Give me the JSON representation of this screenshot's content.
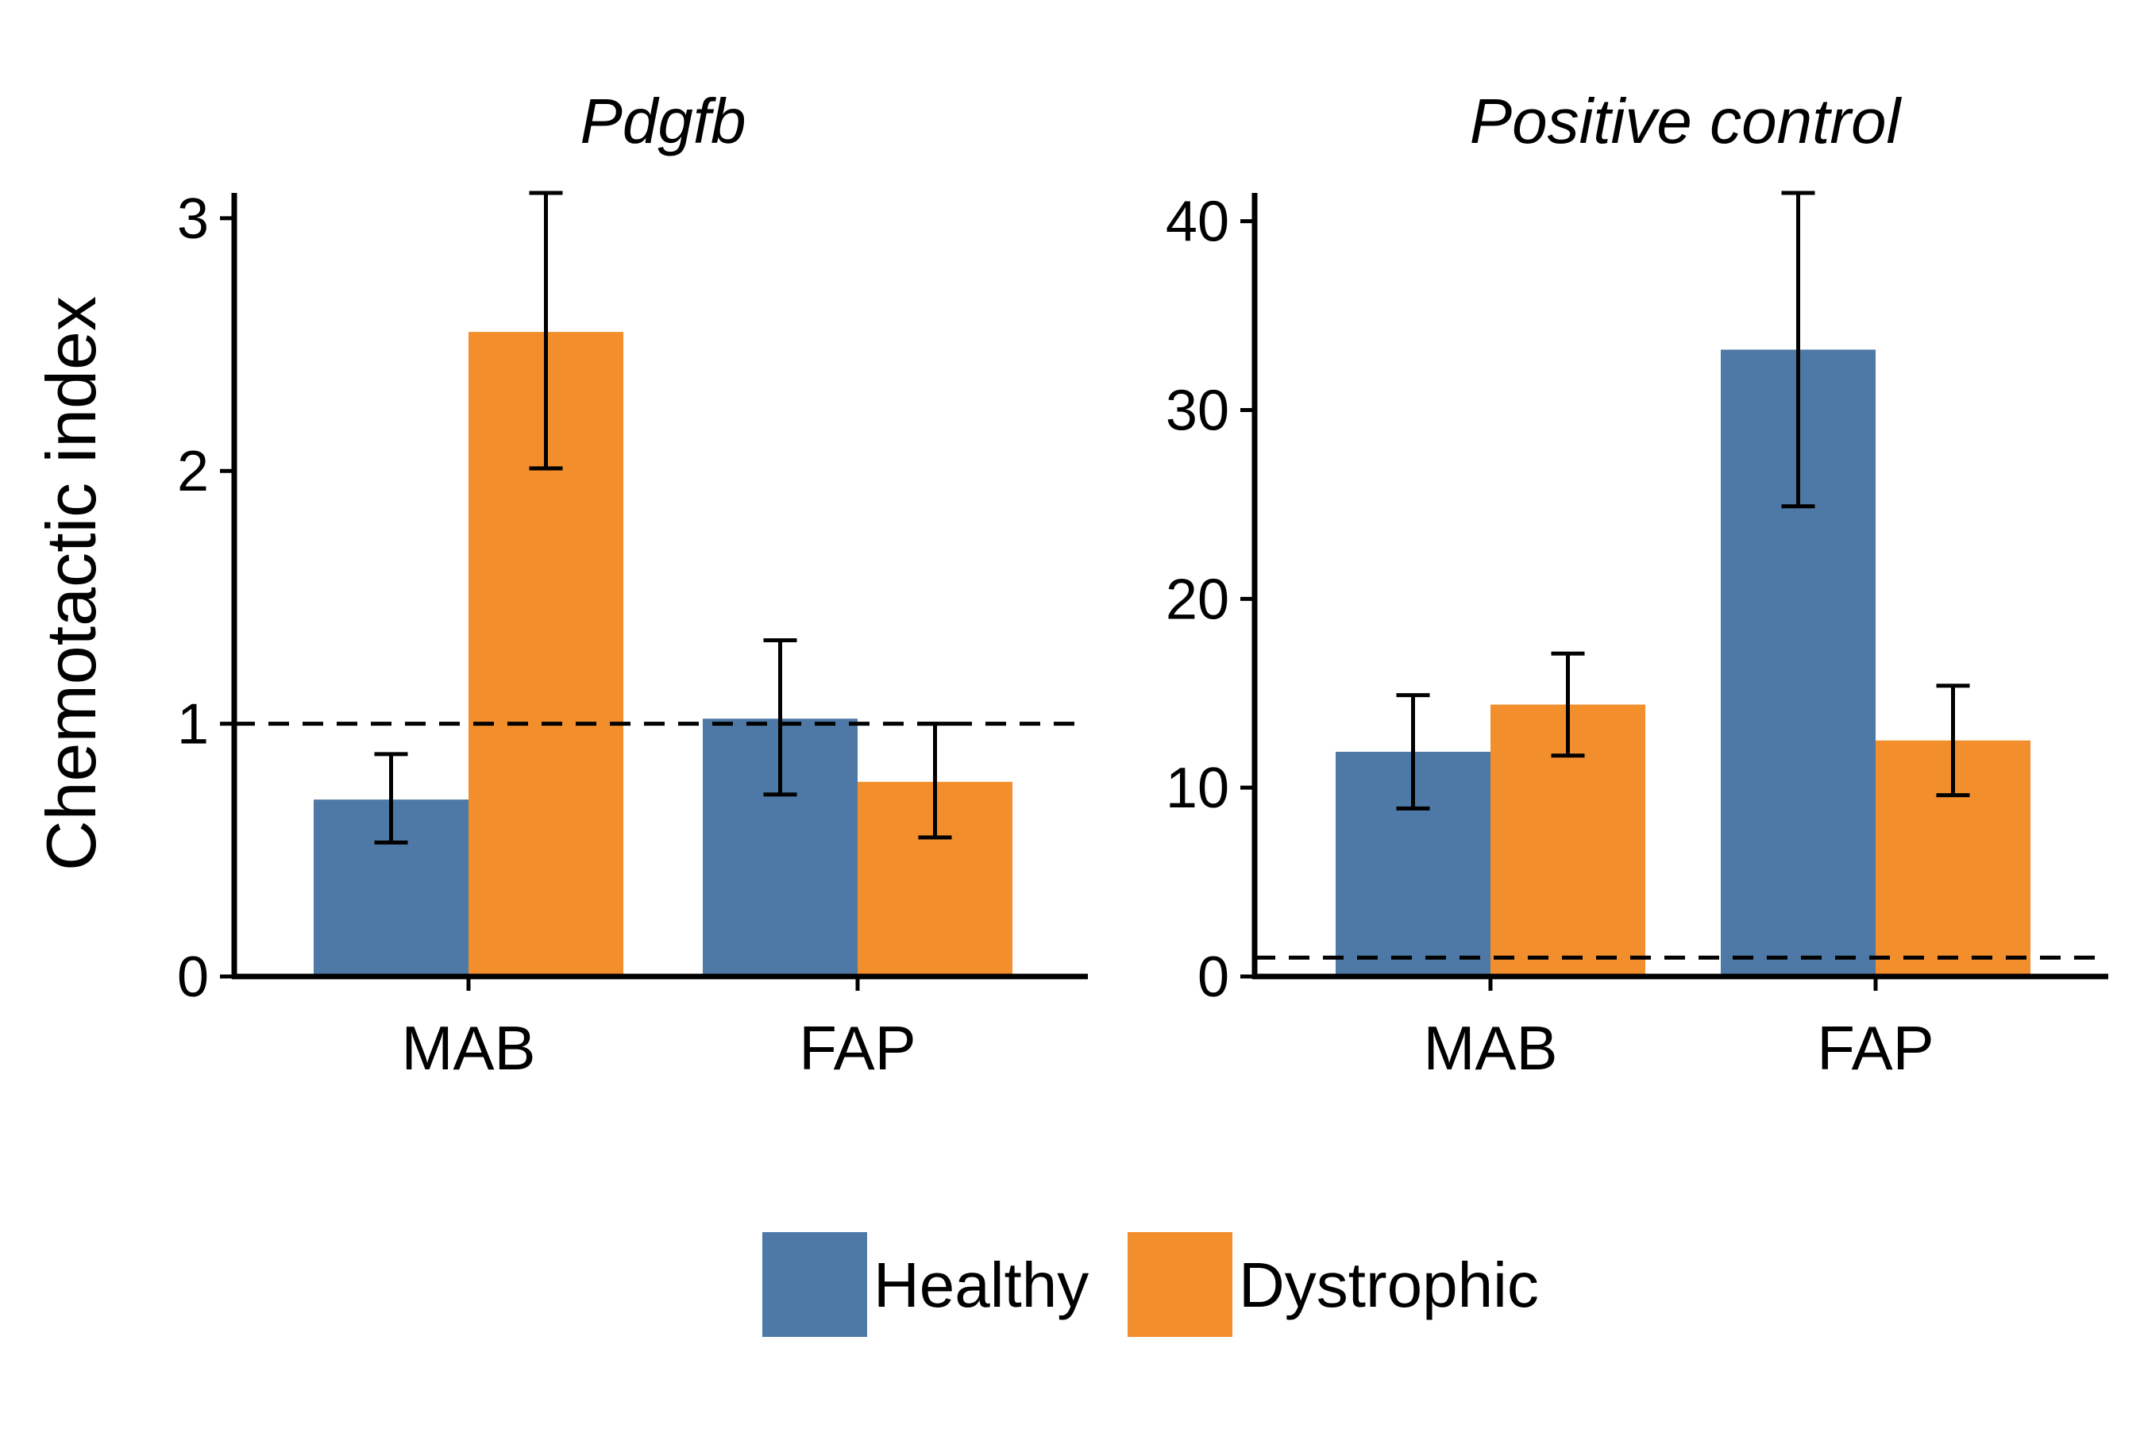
{
  "colors": {
    "healthy": "#4e79a7",
    "dystrophic": "#f28e2b",
    "axis": "#000000"
  },
  "ylabel": "Chemotactic index",
  "legend": {
    "placement": "bottom",
    "items": [
      {
        "key": "healthy",
        "label": "Healthy"
      },
      {
        "key": "dystrophic",
        "label": "Dystrophic"
      }
    ]
  },
  "chart_data": [
    {
      "type": "bar",
      "title": "Pdgfb",
      "categories": [
        "MAB",
        "FAP"
      ],
      "ylim": [
        0,
        3.1
      ],
      "yticks": [
        0,
        1,
        2,
        3
      ],
      "reference_line": 1,
      "series": [
        {
          "name": "Healthy",
          "values": [
            0.7,
            1.02
          ],
          "error_low": [
            0.53,
            0.72
          ],
          "error_high": [
            0.88,
            1.33
          ]
        },
        {
          "name": "Dystrophic",
          "values": [
            2.55,
            0.77
          ],
          "error_low": [
            2.01,
            0.55
          ],
          "error_high": [
            3.1,
            1.0
          ]
        }
      ]
    },
    {
      "type": "bar",
      "title": "Positive control",
      "categories": [
        "MAB",
        "FAP"
      ],
      "ylim": [
        0,
        41.5
      ],
      "yticks": [
        0,
        10,
        20,
        30,
        40
      ],
      "reference_line": 1,
      "series": [
        {
          "name": "Healthy",
          "values": [
            11.9,
            33.2
          ],
          "error_low": [
            8.9,
            24.9
          ],
          "error_high": [
            14.9,
            41.5
          ]
        },
        {
          "name": "Dystrophic",
          "values": [
            14.4,
            12.5
          ],
          "error_low": [
            11.7,
            9.6
          ],
          "error_high": [
            17.1,
            15.4
          ]
        }
      ]
    }
  ]
}
